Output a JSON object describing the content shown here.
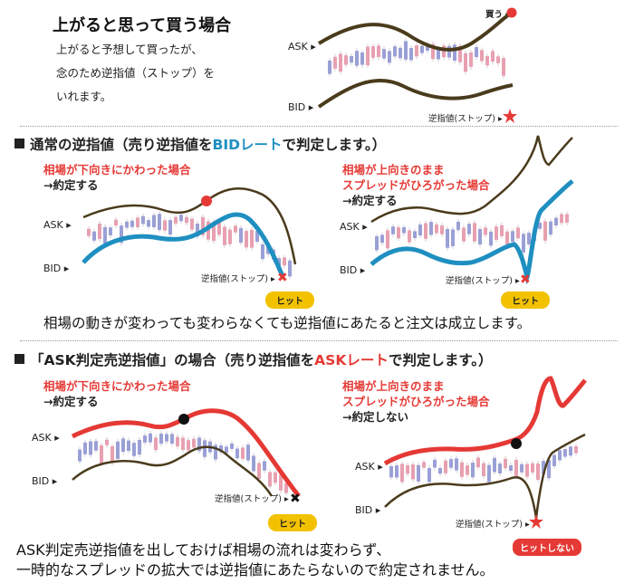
{
  "top": {
    "title": "上がると思って買う場合",
    "body_lines": [
      "上がると予想して買ったが、",
      "念のため逆指値（ストップ）を",
      "いれます。"
    ],
    "ask_label": "ASK",
    "bid_label": "BID",
    "buy_label": "買う",
    "stop_label": "逆指値(ストップ)"
  },
  "section1": {
    "heading_pre": "通常の逆指値（売り逆指値を",
    "heading_highlight": "BIDレート",
    "heading_post": "で判定します。）",
    "left": {
      "caption_red": "相場が下向きにかわった場合",
      "caption_dark": "→約定する",
      "ask_label": "ASK",
      "bid_label": "BID",
      "stop_label": "逆指値(ストップ)",
      "badge": "ヒット"
    },
    "right": {
      "caption_red_1": "相場が上向きのまま",
      "caption_red_2": "スプレッドがひろがった場合",
      "caption_dark": "→約定する",
      "ask_label": "ASK",
      "bid_label": "BID",
      "stop_label": "逆指値(ストップ)",
      "badge": "ヒット"
    },
    "summary": "相場の動きが変わっても変わらなくても逆指値にあたると注文は成立します。"
  },
  "section2": {
    "heading_pre": "「ASK判定売逆指値」の場合（売り逆指値を",
    "heading_highlight": "ASKレート",
    "heading_post": "で判定します。）",
    "left": {
      "caption_red": "相場が下向きにかわった場合",
      "caption_dark": "→約定する",
      "ask_label": "ASK",
      "bid_label": "BID",
      "stop_label": "逆指値(ストップ)",
      "badge": "ヒット"
    },
    "right": {
      "caption_red_1": "相場が上向きのまま",
      "caption_red_2": "スプレッドがひろがった場合",
      "caption_dark": "→約定しない",
      "ask_label": "ASK",
      "bid_label": "BID",
      "stop_label": "逆指値(ストップ)",
      "badge": "ヒットしない"
    },
    "summary_1": "ASK判定売逆指値を出しておけば相場の流れは変わらず、",
    "summary_2": "一時的なスプレッドの拡大では逆指値にあたらないので約定されません。"
  },
  "colors": {
    "ask_curve": "#4a3b1c",
    "bid_curve_blue": "#1e8fc0",
    "ask_curve_red": "#e53935",
    "badge_yellow": "#f2c200",
    "candle_pink": "#e8a0b0",
    "candle_blue": "#9aa0d6"
  }
}
